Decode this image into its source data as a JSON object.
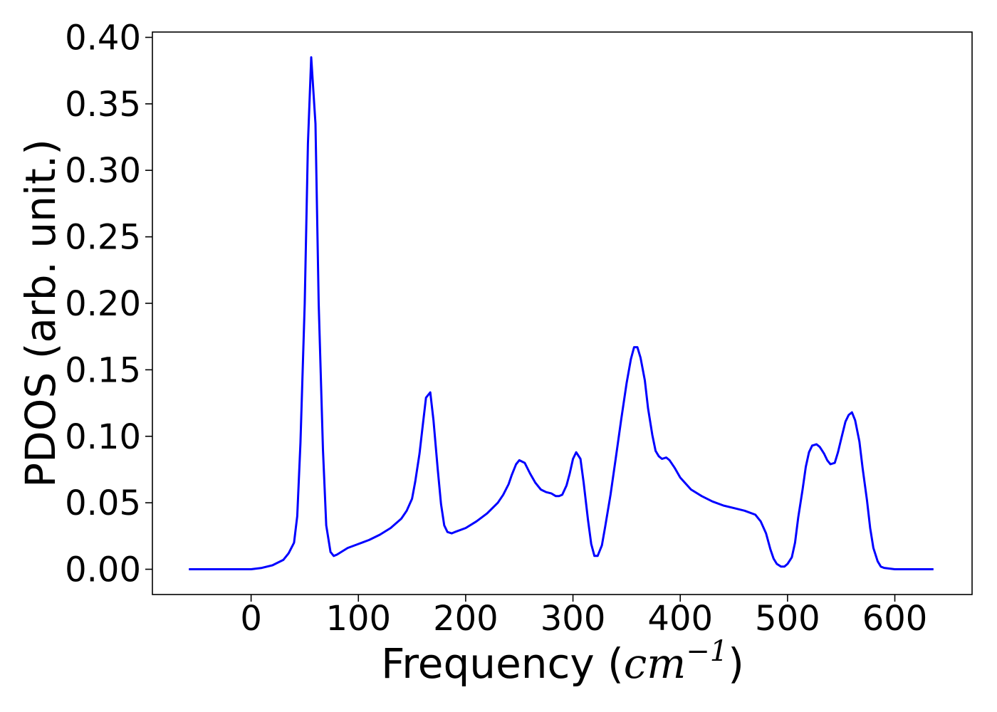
{
  "chart_data": {
    "type": "line",
    "title": "",
    "xlabel_prefix": "Frequency (",
    "xlabel_unit": "cm",
    "xlabel_exponent": "−1",
    "xlabel_suffix": ")",
    "ylabel": "PDOS (arb. unit.)",
    "xlim": [
      -92,
      672
    ],
    "ylim": [
      -0.019,
      0.404
    ],
    "xticks": [
      0,
      100,
      200,
      300,
      400,
      500,
      600
    ],
    "xtick_labels": [
      "0",
      "100",
      "200",
      "300",
      "400",
      "500",
      "600"
    ],
    "yticks": [
      0.0,
      0.05,
      0.1,
      0.15,
      0.2,
      0.25,
      0.3,
      0.35,
      0.4
    ],
    "ytick_labels": [
      "0.00",
      "0.05",
      "0.10",
      "0.15",
      "0.20",
      "0.25",
      "0.30",
      "0.35",
      "0.40"
    ],
    "grid": false,
    "legend": "none",
    "line_color": "#0000ff",
    "series": [
      {
        "x": [
          -58,
          0,
          10,
          20,
          30,
          35,
          40,
          43,
          46,
          50,
          53,
          56,
          60,
          63,
          67,
          70,
          74,
          77,
          80,
          90,
          100,
          110,
          120,
          130,
          140,
          145,
          150,
          153,
          157,
          160,
          163,
          167,
          170,
          174,
          177,
          180,
          183,
          187,
          190,
          200,
          210,
          220,
          230,
          235,
          240,
          243,
          247,
          250,
          255,
          260,
          265,
          270,
          275,
          280,
          284,
          287,
          290,
          294,
          297,
          300,
          303,
          307,
          310,
          314,
          317,
          320,
          323,
          327,
          330,
          335,
          340,
          345,
          350,
          354,
          357,
          360,
          363,
          367,
          370,
          374,
          377,
          380,
          383,
          387,
          390,
          395,
          400,
          410,
          420,
          430,
          440,
          450,
          460,
          470,
          475,
          480,
          484,
          487,
          490,
          494,
          497,
          500,
          504,
          507,
          510,
          514,
          517,
          520,
          523,
          527,
          530,
          534,
          537,
          540,
          544,
          547,
          550,
          554,
          557,
          560,
          563,
          567,
          570,
          574,
          577,
          580,
          584,
          587,
          590,
          600,
          636
        ],
        "values": [
          0.0,
          0.0,
          0.001,
          0.003,
          0.007,
          0.012,
          0.02,
          0.04,
          0.095,
          0.2,
          0.32,
          0.385,
          0.335,
          0.2,
          0.09,
          0.033,
          0.013,
          0.01,
          0.011,
          0.016,
          0.019,
          0.022,
          0.026,
          0.031,
          0.038,
          0.044,
          0.053,
          0.066,
          0.087,
          0.108,
          0.129,
          0.133,
          0.112,
          0.075,
          0.049,
          0.033,
          0.028,
          0.027,
          0.028,
          0.031,
          0.036,
          0.042,
          0.05,
          0.056,
          0.064,
          0.071,
          0.079,
          0.082,
          0.08,
          0.072,
          0.065,
          0.06,
          0.058,
          0.057,
          0.055,
          0.055,
          0.056,
          0.063,
          0.072,
          0.083,
          0.088,
          0.083,
          0.065,
          0.037,
          0.019,
          0.01,
          0.01,
          0.018,
          0.032,
          0.056,
          0.084,
          0.113,
          0.14,
          0.158,
          0.167,
          0.167,
          0.159,
          0.142,
          0.121,
          0.101,
          0.089,
          0.085,
          0.083,
          0.084,
          0.082,
          0.076,
          0.069,
          0.06,
          0.055,
          0.051,
          0.048,
          0.046,
          0.044,
          0.041,
          0.036,
          0.027,
          0.015,
          0.008,
          0.004,
          0.002,
          0.002,
          0.004,
          0.009,
          0.02,
          0.039,
          0.06,
          0.077,
          0.088,
          0.093,
          0.094,
          0.092,
          0.087,
          0.082,
          0.079,
          0.08,
          0.088,
          0.098,
          0.111,
          0.116,
          0.118,
          0.112,
          0.096,
          0.076,
          0.052,
          0.031,
          0.016,
          0.006,
          0.002,
          0.001,
          0.0,
          0.0
        ]
      }
    ]
  }
}
